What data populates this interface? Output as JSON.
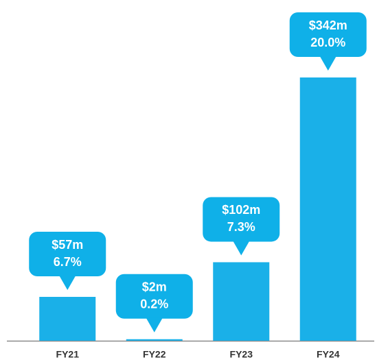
{
  "chart_data": {
    "type": "bar",
    "categories": [
      "FY21",
      "FY22",
      "FY23",
      "FY24"
    ],
    "values": [
      57,
      2,
      102,
      342
    ],
    "value_labels": [
      "$57m",
      "$2m",
      "$102m",
      "$342m"
    ],
    "margins": [
      6.7,
      0.2,
      7.3,
      20.0
    ],
    "margin_labels": [
      "6.7%",
      "0.2%",
      "7.3%",
      "20.0%"
    ],
    "color": "#1ab0e8"
  }
}
